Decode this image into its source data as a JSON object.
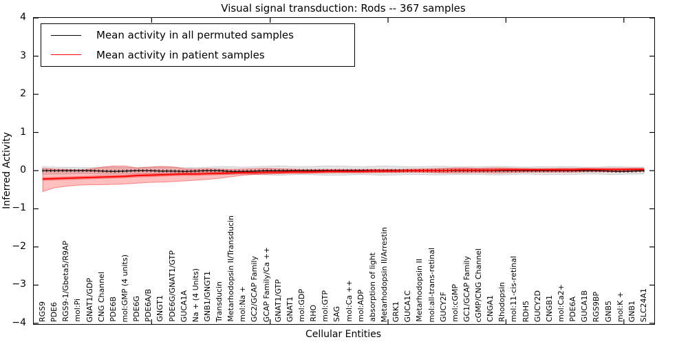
{
  "title": "Visual signal transduction: Rods -- 367 samples",
  "legend": {
    "items": [
      {
        "label": "Mean activity in all permuted samples",
        "color": "#000000"
      },
      {
        "label": "Mean activity in patient samples",
        "color": "#ff0000"
      }
    ]
  },
  "chart_data": {
    "type": "line",
    "title": "Visual signal transduction: Rods -- 367 samples",
    "xlabel": "Cellular Entities",
    "ylabel": "Inferred Activity",
    "ylim": [
      -4,
      4
    ],
    "grid": false,
    "legend_position": "upper left",
    "yticks": [
      {
        "value": 4,
        "label": "4"
      },
      {
        "value": 3,
        "label": "3"
      },
      {
        "value": 2,
        "label": "2"
      },
      {
        "value": 1,
        "label": "1"
      },
      {
        "value": 0,
        "label": "0"
      },
      {
        "value": -1,
        "label": "−1"
      },
      {
        "value": -2,
        "label": "−2"
      },
      {
        "value": -3,
        "label": "−3"
      },
      {
        "value": -4,
        "label": "−4"
      }
    ],
    "categories": [
      "RGS9",
      "PDE6",
      "RGS9-1/Gbeta5/R9AP",
      "mol:Pi",
      "GNAT1/GDP",
      "CNG Channel",
      "PDE6B",
      "mol:GMP (4 units)",
      "PDE6G",
      "PDE6A/B",
      "GNGT1",
      "PDE6G/GNAT1/GTP",
      "GUCA1A",
      "Na + (4 Units)",
      "GNB1/GNGT1",
      "Transducin",
      "Metarhodopsin II/Transducin",
      "mol:Na +",
      "GC2/GCAP Family",
      "GCAP Family/Ca ++",
      "GNAT1/GTP",
      "GNAT1",
      "mol:GDP",
      "RHO",
      "mol:GTP",
      "SAG",
      "mol:Ca ++",
      "mol:ADP",
      "absorption of light",
      "Metarhodopsin II/Arrestin",
      "GRK1",
      "GUCA1C",
      "Metarhodopsin II",
      "mol:all-trans-retinal",
      "GUCY2F",
      "mol:cGMP",
      "GC1/GCAP Family",
      "cGMP/CNG Channel",
      "CNGA1",
      "Rhodopsin",
      "mol:11-cis-retinal",
      "RDH5",
      "GUCY2D",
      "CNGB1",
      "mol:Ca2+",
      "PDE6A",
      "GUCA1B",
      "RGS9BP",
      "GNB5",
      "mol:K +",
      "GNB1",
      "SLC24A1"
    ],
    "series": [
      {
        "name": "Mean activity in all permuted samples",
        "color": "#000000",
        "values": [
          0,
          0,
          0,
          0,
          0,
          -0.01,
          -0.02,
          -0.01,
          0,
          0,
          -0.01,
          -0.01,
          -0.02,
          -0.01,
          0,
          0,
          -0.02,
          -0.02,
          -0.01,
          0,
          0,
          0,
          0,
          0,
          0,
          0,
          0,
          0,
          0,
          0,
          0,
          0,
          0,
          0,
          0,
          0,
          0,
          0,
          0,
          0,
          0,
          0,
          0,
          0,
          0,
          0,
          0,
          0,
          -0.01,
          -0.02,
          -0.01,
          0
        ]
      },
      {
        "name": "Mean activity in patient samples",
        "color": "#ff0000",
        "values": [
          -0.22,
          -0.21,
          -0.2,
          -0.19,
          -0.18,
          -0.17,
          -0.16,
          -0.15,
          -0.13,
          -0.12,
          -0.11,
          -0.1,
          -0.09,
          -0.09,
          -0.08,
          -0.07,
          -0.06,
          -0.05,
          -0.05,
          -0.04,
          -0.04,
          -0.03,
          -0.03,
          -0.03,
          -0.02,
          -0.02,
          -0.02,
          -0.02,
          -0.01,
          -0.01,
          -0.01,
          0.0,
          0.0,
          0.0,
          0.0,
          0.01,
          0.01,
          0.01,
          0.01,
          0.02,
          0.02,
          0.02,
          0.02,
          0.02,
          0.02,
          0.02,
          0.03,
          0.03,
          0.03,
          0.03,
          0.03,
          0.03
        ]
      }
    ],
    "bands": [
      {
        "name": "permuted-samples-band",
        "fill": "rgba(0,0,0,0.10)",
        "edge": "rgba(0,0,0,0.15)",
        "upper": [
          0.1,
          0.09,
          0.09,
          0.08,
          0.08,
          0.09,
          0.09,
          0.08,
          0.08,
          0.09,
          0.09,
          0.09,
          0.08,
          0.08,
          0.09,
          0.1,
          0.1,
          0.09,
          0.1,
          0.11,
          0.12,
          0.11,
          0.1,
          0.11,
          0.12,
          0.12,
          0.11,
          0.1,
          0.11,
          0.12,
          0.11,
          0.1,
          0.1,
          0.11,
          0.11,
          0.1,
          0.1,
          0.1,
          0.11,
          0.11,
          0.1,
          0.09,
          0.1,
          0.1,
          0.1,
          0.1,
          0.09,
          0.09,
          0.1,
          0.1,
          0.09,
          0.09
        ],
        "lower": [
          -0.1,
          -0.09,
          -0.09,
          -0.08,
          -0.08,
          -0.09,
          -0.09,
          -0.08,
          -0.08,
          -0.09,
          -0.09,
          -0.09,
          -0.08,
          -0.08,
          -0.09,
          -0.1,
          -0.1,
          -0.09,
          -0.1,
          -0.11,
          -0.12,
          -0.11,
          -0.1,
          -0.11,
          -0.12,
          -0.12,
          -0.11,
          -0.1,
          -0.11,
          -0.12,
          -0.11,
          -0.1,
          -0.1,
          -0.11,
          -0.11,
          -0.1,
          -0.1,
          -0.1,
          -0.11,
          -0.11,
          -0.1,
          -0.09,
          -0.1,
          -0.1,
          -0.1,
          -0.1,
          -0.09,
          -0.09,
          -0.1,
          -0.1,
          -0.09,
          -0.09
        ]
      },
      {
        "name": "patient-samples-band",
        "fill": "rgba(255,0,0,0.25)",
        "edge": "rgba(255,0,0,0.40)",
        "upper": [
          0.06,
          0.04,
          0.03,
          0.02,
          0.04,
          0.09,
          0.12,
          0.12,
          0.07,
          0.09,
          0.11,
          0.1,
          0.05,
          0.04,
          0.05,
          0.04,
          0.03,
          0.04,
          0.05,
          0.06,
          0.05,
          0.04,
          0.03,
          0.03,
          0.03,
          0.03,
          0.03,
          0.03,
          0.03,
          0.03,
          0.03,
          0.03,
          0.04,
          0.05,
          0.06,
          0.07,
          0.07,
          0.06,
          0.07,
          0.07,
          0.06,
          0.05,
          0.04,
          0.05,
          0.06,
          0.06,
          0.05,
          0.04,
          0.04,
          0.04,
          0.05,
          0.05
        ],
        "lower": [
          -0.55,
          -0.45,
          -0.41,
          -0.38,
          -0.37,
          -0.37,
          -0.36,
          -0.35,
          -0.33,
          -0.31,
          -0.3,
          -0.29,
          -0.27,
          -0.25,
          -0.23,
          -0.2,
          -0.16,
          -0.12,
          -0.1,
          -0.09,
          -0.08,
          -0.07,
          -0.07,
          -0.06,
          -0.06,
          -0.05,
          -0.05,
          -0.05,
          -0.05,
          -0.04,
          -0.04,
          -0.04,
          -0.04,
          -0.05,
          -0.06,
          -0.06,
          -0.06,
          -0.05,
          -0.06,
          -0.06,
          -0.05,
          -0.04,
          -0.04,
          -0.04,
          -0.04,
          -0.04,
          -0.03,
          -0.03,
          -0.03,
          -0.03,
          -0.03,
          -0.02
        ]
      }
    ]
  }
}
